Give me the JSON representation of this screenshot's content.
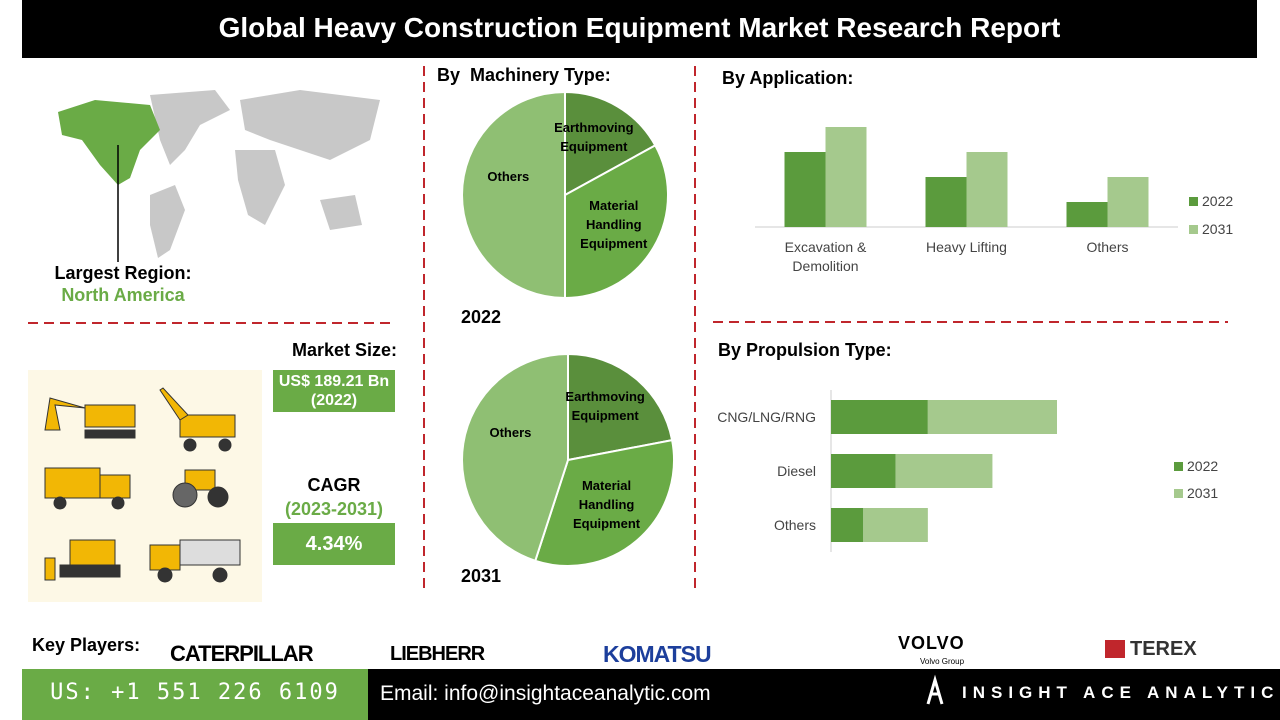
{
  "header": {
    "title": "Global Heavy Construction Equipment Market Research Report"
  },
  "region": {
    "label": "Largest Region:",
    "value": "North America"
  },
  "market_size": {
    "label": "Market Size:",
    "value": "US$ 189.21 Bn (2022)"
  },
  "cagr": {
    "label": "CAGR",
    "period": "(2023-2031)",
    "value": "4.34%"
  },
  "key_players": {
    "label": "Key Players:",
    "companies": [
      "CATERPILLAR",
      "LIEBHERR",
      "KOMATSU",
      "VOLVO",
      "TEREX"
    ],
    "volvo_subtitle": "Volvo Group"
  },
  "footer": {
    "phone": "US: +1 551 226 6109",
    "email": "Email: info@insightaceanalytic.com",
    "brand": "INSIGHT ACE ANALYTIC"
  },
  "chart_data": [
    {
      "type": "pie",
      "title": "By  Machinery Type:",
      "subtitle": "2022",
      "categories": [
        "Earthmoving Equipment",
        "Material Handling Equipment",
        "Others"
      ],
      "values": [
        17,
        33,
        50
      ],
      "colors": [
        "#5a8f3c",
        "#6aab46",
        "#8fbf73"
      ]
    },
    {
      "type": "pie",
      "subtitle": "2031",
      "categories": [
        "Earthmoving Equipment",
        "Material Handling Equipment",
        "Others"
      ],
      "values": [
        22,
        33,
        45
      ],
      "colors": [
        "#5a8f3c",
        "#6aab46",
        "#8fbf73"
      ]
    },
    {
      "type": "bar",
      "title": "By Application:",
      "categories": [
        "Excavation & Demolition",
        "Heavy Lifting",
        "Others"
      ],
      "series": [
        {
          "name": "2022",
          "color": "#5b9b3d",
          "values": [
            3,
            2,
            1
          ]
        },
        {
          "name": "2031",
          "color": "#a5c98d",
          "values": [
            4,
            3,
            2
          ]
        }
      ]
    },
    {
      "type": "stacked_barh",
      "title": "By Propulsion Type:",
      "categories": [
        "CNG/LNG/RNG",
        "Diesel",
        "Others"
      ],
      "series": [
        {
          "name": "2022",
          "color": "#5b9b3d",
          "values": [
            3,
            2,
            1
          ]
        },
        {
          "name": "2031",
          "color": "#a5c98d",
          "values": [
            4,
            3,
            2
          ]
        }
      ]
    }
  ]
}
